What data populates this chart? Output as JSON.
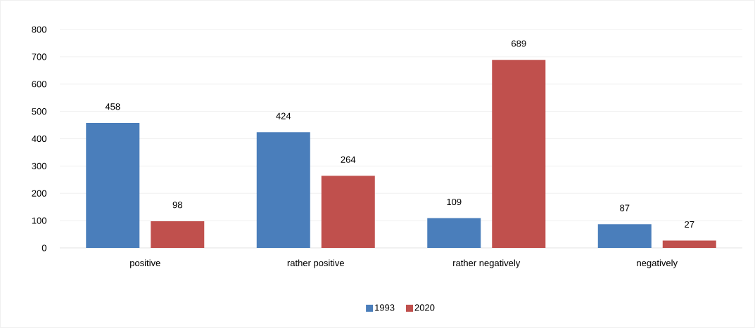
{
  "chart_data": {
    "type": "bar",
    "categories": [
      "positive",
      "rather positive",
      "rather negatively",
      "negatively"
    ],
    "series": [
      {
        "name": "1993",
        "color": "#4a7ebb",
        "values": [
          458,
          424,
          109,
          87
        ]
      },
      {
        "name": "2020",
        "color": "#c0504d",
        "values": [
          98,
          264,
          689,
          27
        ]
      }
    ],
    "ylim": [
      0,
      800
    ],
    "yticks": [
      0,
      100,
      200,
      300,
      400,
      500,
      600,
      700,
      800
    ],
    "grid": "y",
    "legend": "bottom",
    "data_labels": true
  }
}
